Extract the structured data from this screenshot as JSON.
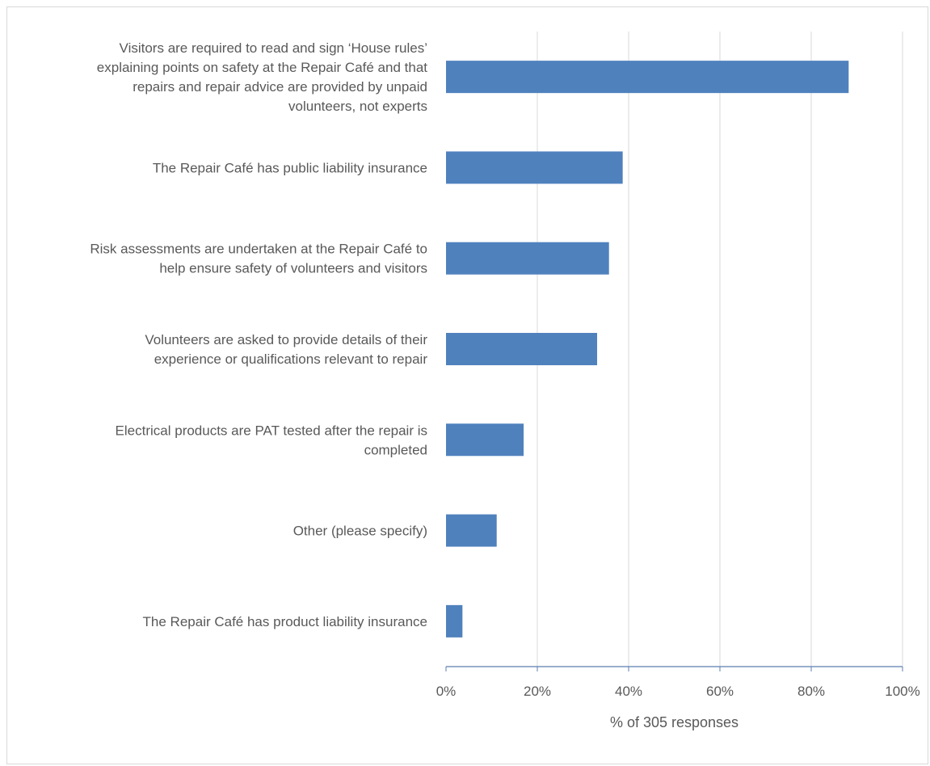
{
  "chart_data": {
    "type": "bar",
    "orientation": "horizontal",
    "title": "",
    "xlabel": "% of 305 responses",
    "ylabel": "",
    "xlim": [
      0,
      100
    ],
    "grid": true,
    "legend": "none",
    "bar_color": "#4f81bd",
    "x_ticks": [
      "0%",
      "20%",
      "40%",
      "60%",
      "80%",
      "100%"
    ],
    "categories": [
      [
        "Visitors are required to read and sign ‘House rules’",
        "explaining points on safety at the Repair Café and that",
        "repairs and repair advice are provided by unpaid",
        "volunteers, not experts"
      ],
      [
        "The Repair Café has public liability insurance"
      ],
      [
        "Risk assessments are undertaken at the Repair Café to",
        "help ensure safety of volunteers and visitors"
      ],
      [
        "Volunteers are asked to provide details of their",
        "experience or qualifications relevant to repair"
      ],
      [
        "Electrical products are PAT tested after the repair is",
        "completed"
      ],
      [
        "Other (please specify)"
      ],
      [
        "The Repair Café has product liability insurance"
      ]
    ],
    "values": [
      88.2,
      38.7,
      35.7,
      33.1,
      17.0,
      11.1,
      3.6
    ]
  }
}
